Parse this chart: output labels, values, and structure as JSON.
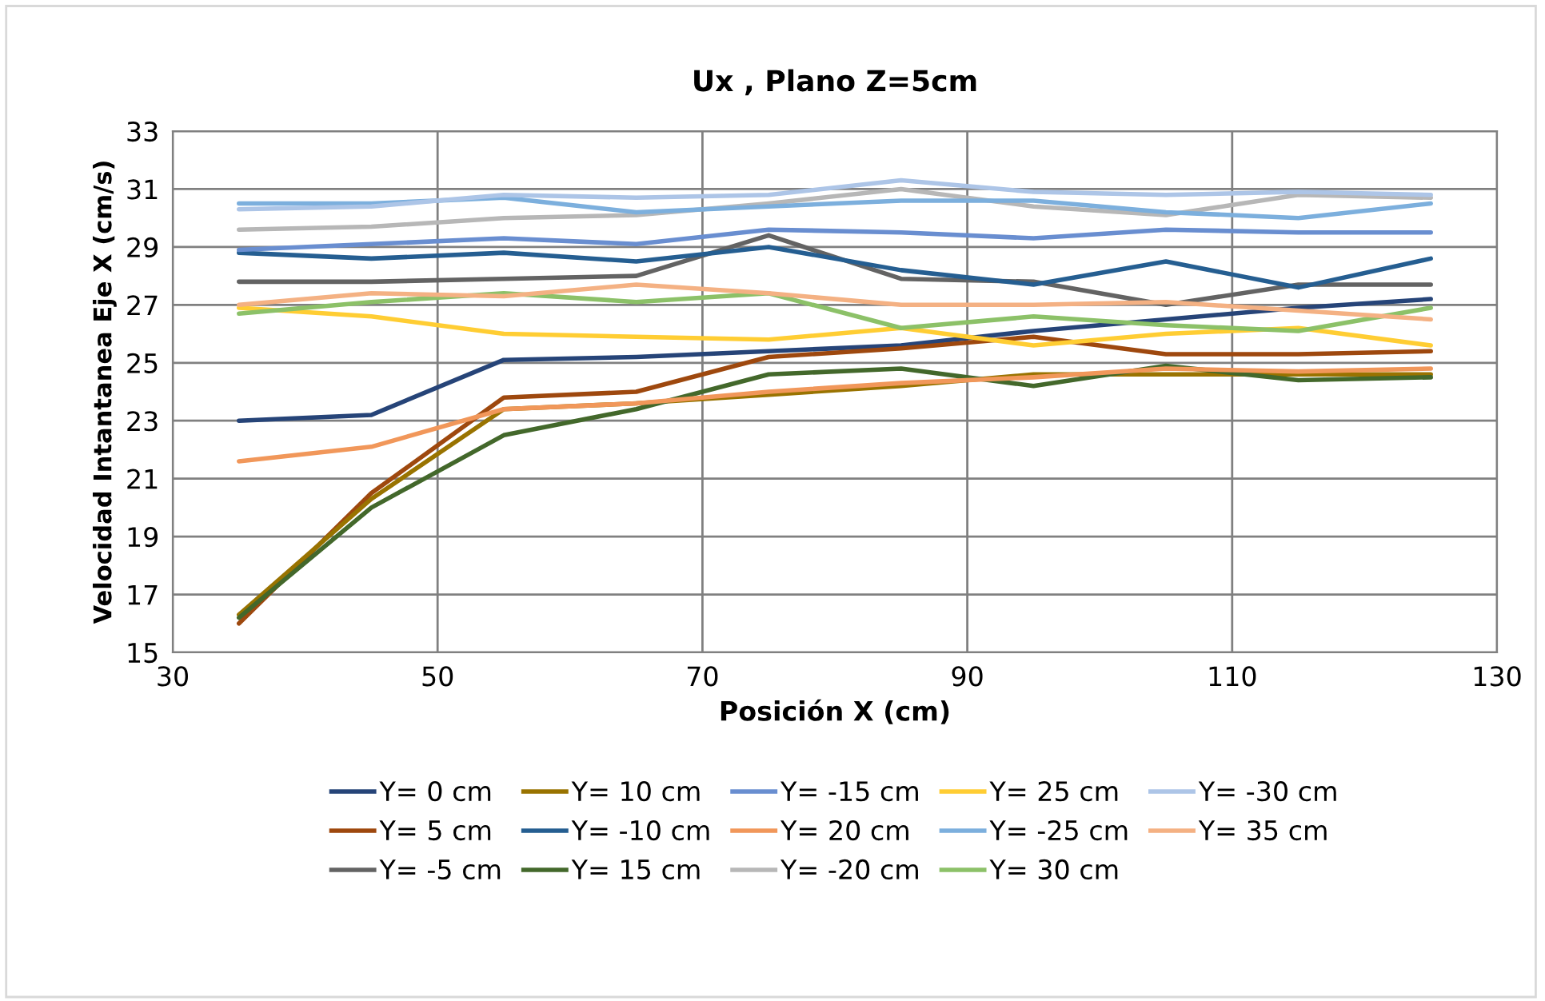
{
  "chart_data": {
    "type": "line",
    "title": "Ux , Plano Z=5cm",
    "xlabel": "Posición X (cm)",
    "ylabel": "Velocidad Intantanea Eje X (cm/s)",
    "x": [
      35,
      45,
      55,
      65,
      75,
      85,
      95,
      105,
      115,
      125
    ],
    "xlim": [
      30,
      130
    ],
    "xticks": [
      30,
      50,
      70,
      90,
      110,
      130
    ],
    "ylim": [
      15,
      33
    ],
    "yticks": [
      15,
      17,
      19,
      21,
      23,
      25,
      27,
      29,
      31,
      33
    ],
    "grid": true,
    "legend": "bottom",
    "marker": "none",
    "line_style": "solid",
    "series": [
      {
        "name": "Y= 0 cm",
        "color": "#264478",
        "values": [
          23.0,
          23.2,
          25.1,
          25.2,
          25.4,
          25.6,
          26.1,
          26.5,
          26.9,
          27.2
        ]
      },
      {
        "name": "Y= 5 cm",
        "color": "#9e480e",
        "values": [
          16.0,
          20.5,
          23.8,
          24.0,
          25.2,
          25.5,
          25.9,
          25.3,
          25.3,
          25.4
        ]
      },
      {
        "name": "Y= -5 cm",
        "color": "#636363",
        "values": [
          27.8,
          27.8,
          27.9,
          28.0,
          29.4,
          27.9,
          27.8,
          27.0,
          27.7,
          27.7
        ]
      },
      {
        "name": "Y= 10 cm",
        "color": "#997300",
        "values": [
          16.3,
          20.3,
          23.4,
          23.6,
          23.9,
          24.2,
          24.6,
          24.6,
          24.6,
          24.6
        ]
      },
      {
        "name": "Y= -10 cm",
        "color": "#255e91",
        "values": [
          28.8,
          28.6,
          28.8,
          28.5,
          29.0,
          28.2,
          27.7,
          28.5,
          27.6,
          28.6
        ]
      },
      {
        "name": "Y= 15 cm",
        "color": "#43682b",
        "values": [
          16.2,
          20.0,
          22.5,
          23.4,
          24.6,
          24.8,
          24.2,
          24.9,
          24.4,
          24.5
        ]
      },
      {
        "name": "Y= -15 cm",
        "color": "#698ed0",
        "values": [
          28.9,
          29.1,
          29.3,
          29.1,
          29.6,
          29.5,
          29.3,
          29.6,
          29.5,
          29.5
        ]
      },
      {
        "name": "Y= 20 cm",
        "color": "#f1975a",
        "values": [
          21.6,
          22.1,
          23.4,
          23.6,
          24.0,
          24.3,
          24.5,
          24.8,
          24.7,
          24.8
        ]
      },
      {
        "name": "Y= -20 cm",
        "color": "#b7b7b7",
        "values": [
          29.6,
          29.7,
          30.0,
          30.1,
          30.5,
          31.0,
          30.4,
          30.1,
          30.8,
          30.7
        ]
      },
      {
        "name": "Y= 25 cm",
        "color": "#ffcd33",
        "values": [
          26.9,
          26.6,
          26.0,
          25.9,
          25.8,
          26.2,
          25.6,
          26.0,
          26.2,
          25.6
        ]
      },
      {
        "name": "Y= -25 cm",
        "color": "#7cafdd",
        "values": [
          30.5,
          30.5,
          30.7,
          30.2,
          30.4,
          30.6,
          30.6,
          30.2,
          30.0,
          30.5
        ]
      },
      {
        "name": "Y= 30 cm",
        "color": "#8cc168",
        "values": [
          26.7,
          27.1,
          27.4,
          27.1,
          27.4,
          26.2,
          26.6,
          26.3,
          26.1,
          26.9
        ]
      },
      {
        "name": "Y= -30 cm",
        "color": "#adc5e7",
        "values": [
          30.3,
          30.4,
          30.8,
          30.7,
          30.8,
          31.3,
          30.9,
          30.8,
          30.9,
          30.8
        ]
      },
      {
        "name": "Y= 35 cm",
        "color": "#f4b183",
        "values": [
          27.0,
          27.4,
          27.3,
          27.7,
          27.4,
          27.0,
          27.0,
          27.1,
          26.8,
          26.5
        ]
      }
    ]
  }
}
